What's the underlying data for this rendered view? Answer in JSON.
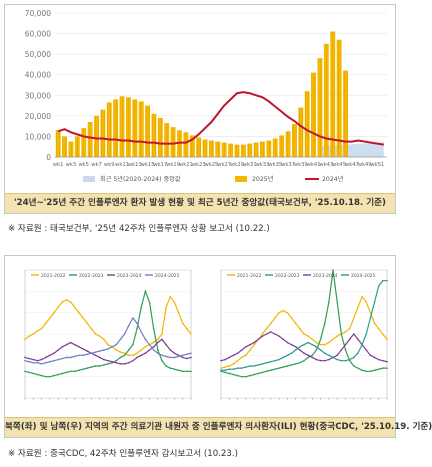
{
  "chart_data": [
    {
      "type": "bar",
      "ylim": [
        0,
        70000
      ],
      "yticks": [
        "0",
        "10,000",
        "20,000",
        "30,000",
        "40,000",
        "50,000",
        "60,000",
        "70,000"
      ],
      "xticks": [
        "wk1",
        "wk3",
        "wk5",
        "wk7",
        "wk9",
        "wk11",
        "wk13",
        "wk15",
        "wk17",
        "wk19",
        "wk21",
        "wk23",
        "wk25",
        "wk27",
        "wk29",
        "wk31",
        "wk33",
        "wk35",
        "wk37",
        "wk39",
        "wk41",
        "wk43",
        "wk45",
        "wk47",
        "wk49",
        "wk51"
      ],
      "series": [
        {
          "name": "최근 5년(2020-2024) 중앙값",
          "type": "area",
          "color": "#c9daf0",
          "values": [
            0,
            0,
            0,
            0,
            0,
            0,
            0,
            0,
            0,
            0,
            0,
            0,
            0,
            0,
            0,
            0,
            0,
            0,
            0,
            0,
            0,
            0,
            0,
            0,
            0,
            0,
            0,
            0,
            0,
            0,
            0,
            0,
            0,
            0,
            0,
            0,
            0,
            0,
            0,
            0,
            0,
            5200,
            5400,
            5600,
            5800,
            6000,
            6200,
            6400,
            6600,
            6800,
            7000,
            7200
          ]
        },
        {
          "name": "2025년",
          "type": "bar",
          "color": "#f5b800",
          "values": [
            13000,
            10000,
            7500,
            10000,
            14000,
            17000,
            20000,
            23000,
            26500,
            28000,
            29500,
            29000,
            28000,
            27000,
            25000,
            21000,
            19000,
            16500,
            14500,
            13000,
            12000,
            10500,
            9500,
            8500,
            8000,
            7500,
            7000,
            6500,
            6000,
            6000,
            6500,
            7000,
            7500,
            8000,
            9000,
            10500,
            12500,
            16000,
            24000,
            32000,
            41000,
            48000,
            55000,
            61000,
            57000,
            42000
          ]
        },
        {
          "name": "2024년",
          "type": "line",
          "color": "#c0152d",
          "values": [
            12500,
            13500,
            12000,
            11000,
            10000,
            9500,
            9000,
            9000,
            8500,
            8500,
            8000,
            8000,
            7500,
            7500,
            7000,
            7000,
            6500,
            6500,
            6500,
            7000,
            7000,
            8500,
            11000,
            14000,
            17000,
            21000,
            25000,
            28000,
            31000,
            31500,
            31000,
            30000,
            29000,
            27000,
            24500,
            22000,
            19500,
            17500,
            15000,
            13000,
            11500,
            10000,
            9000,
            8500,
            8000,
            7500,
            7500,
            8000,
            7500,
            7000,
            6500,
            6000
          ]
        }
      ]
    },
    {
      "type": "line",
      "legend": [
        "2021-2022",
        "2022-2023",
        "2023-2024",
        "2024-2025"
      ],
      "series": [
        {
          "name": "2021-2022",
          "color": "#f2b600",
          "values": [
            5.5,
            5.8,
            6.0,
            6.3,
            6.5,
            7.0,
            7.5,
            8.0,
            8.5,
            9.0,
            9.2,
            9.0,
            8.5,
            8.0,
            7.5,
            7.0,
            6.5,
            6.0,
            5.8,
            5.5,
            5.0,
            4.8,
            4.5,
            4.3,
            4.2,
            4.0,
            4.0,
            4.2,
            4.5,
            4.8,
            5.0,
            5.2,
            5.5,
            6.0,
            8.5,
            9.5,
            9.0,
            8.0,
            7.0,
            6.5,
            6.0
          ]
        },
        {
          "name": "2022-2023",
          "color": "#2f9e56",
          "values": [
            2.5,
            2.4,
            2.3,
            2.2,
            2.1,
            2.0,
            2.0,
            2.1,
            2.2,
            2.3,
            2.4,
            2.5,
            2.5,
            2.6,
            2.7,
            2.8,
            2.9,
            3.0,
            3.0,
            3.1,
            3.2,
            3.3,
            3.5,
            3.8,
            4.0,
            4.5,
            5.0,
            6.5,
            8.5,
            10.0,
            9.0,
            6.5,
            4.5,
            3.5,
            3.0,
            2.8,
            2.7,
            2.6,
            2.5,
            2.5,
            2.5
          ]
        },
        {
          "name": "2023-2024",
          "color": "#7a3f93",
          "values": [
            3.8,
            3.7,
            3.6,
            3.5,
            3.6,
            3.8,
            4.0,
            4.2,
            4.5,
            4.8,
            5.0,
            5.2,
            5.0,
            4.8,
            4.6,
            4.4,
            4.2,
            4.0,
            3.8,
            3.6,
            3.5,
            3.4,
            3.3,
            3.2,
            3.2,
            3.3,
            3.5,
            3.8,
            4.0,
            4.2,
            4.5,
            4.8,
            5.2,
            5.5,
            5.0,
            4.5,
            4.2,
            4.0,
            3.8,
            3.7,
            3.8
          ]
        },
        {
          "name": "2024-2025",
          "color": "#6d7fc4",
          "values": [
            3.5,
            3.4,
            3.3,
            3.3,
            3.2,
            3.3,
            3.4,
            3.5,
            3.6,
            3.7,
            3.8,
            3.8,
            3.9,
            4.0,
            4.0,
            4.1,
            4.2,
            4.3,
            4.4,
            4.5,
            4.6,
            4.8,
            5.0,
            5.5,
            6.0,
            6.8,
            7.5,
            7.0,
            6.2,
            5.5,
            5.0,
            4.5,
            4.2,
            4.0,
            3.9,
            3.8,
            3.8,
            3.9,
            4.0,
            4.1,
            4.2
          ]
        }
      ]
    },
    {
      "type": "line",
      "legend": [
        "2021-2022",
        "2022-2023",
        "2023-2024",
        "2024-2025"
      ],
      "series": [
        {
          "name": "2021-2022",
          "color": "#f2b600",
          "values": [
            2.8,
            2.9,
            3.0,
            3.2,
            3.5,
            3.8,
            4.0,
            4.5,
            5.0,
            5.5,
            6.0,
            6.5,
            7.0,
            7.5,
            8.0,
            8.2,
            8.0,
            7.5,
            7.0,
            6.5,
            6.0,
            5.8,
            5.5,
            5.2,
            5.0,
            5.0,
            5.2,
            5.5,
            5.8,
            6.0,
            6.2,
            6.5,
            7.5,
            8.5,
            9.5,
            9.0,
            8.0,
            7.0,
            6.5,
            6.0,
            5.5
          ]
        },
        {
          "name": "2022-2023",
          "color": "#2f9e56",
          "values": [
            2.5,
            2.4,
            2.3,
            2.2,
            2.1,
            2.0,
            2.0,
            2.1,
            2.2,
            2.3,
            2.4,
            2.5,
            2.6,
            2.7,
            2.8,
            2.9,
            3.0,
            3.1,
            3.2,
            3.3,
            3.5,
            3.8,
            4.0,
            4.5,
            5.5,
            7.0,
            9.0,
            12.0,
            9.0,
            6.0,
            4.5,
            3.5,
            3.0,
            2.8,
            2.6,
            2.5,
            2.5,
            2.6,
            2.7,
            2.8,
            2.8
          ]
        },
        {
          "name": "2023-2024",
          "color": "#7a3f93",
          "values": [
            3.5,
            3.6,
            3.8,
            4.0,
            4.2,
            4.5,
            4.8,
            5.0,
            5.2,
            5.5,
            5.8,
            6.0,
            6.2,
            6.0,
            5.8,
            5.5,
            5.2,
            5.0,
            4.8,
            4.5,
            4.2,
            4.0,
            3.8,
            3.6,
            3.5,
            3.5,
            3.6,
            3.8,
            4.0,
            4.5,
            5.0,
            5.5,
            6.0,
            5.5,
            5.0,
            4.5,
            4.0,
            3.8,
            3.6,
            3.5,
            3.4
          ]
        },
        {
          "name": "2024-2025",
          "color": "#2a9d8f",
          "values": [
            2.6,
            2.6,
            2.7,
            2.7,
            2.8,
            2.8,
            2.9,
            3.0,
            3.0,
            3.1,
            3.2,
            3.3,
            3.4,
            3.5,
            3.6,
            3.8,
            4.0,
            4.2,
            4.5,
            4.8,
            5.0,
            5.2,
            5.0,
            4.8,
            4.5,
            4.2,
            4.0,
            3.8,
            3.6,
            3.5,
            3.5,
            3.6,
            3.8,
            4.2,
            5.0,
            6.0,
            7.5,
            9.0,
            10.5,
            11.0,
            11.0
          ]
        }
      ]
    }
  ],
  "captions": {
    "top": "'24년~'25년 주간 인플루엔자 환자 발생 현황 및 최근 5년간 중앙값(태국보건부, '25.10.18. 기준)",
    "source_1": "※ 자료원 : 태국보건부, '25년 42주차 인플루엔자 상황 보고서 (10.22.)",
    "bottom": "북쪽(좌) 및 남쪽(우) 지역의 주간 의료기관 내원자 중 인플루엔자 의사환자(ILI) 현황(중국CDC, '25.10.19. 기준)",
    "source_2": "※ 자료원 : 중국CDC, 42주차 인플루엔자 감시보고서 (10.23.)"
  }
}
